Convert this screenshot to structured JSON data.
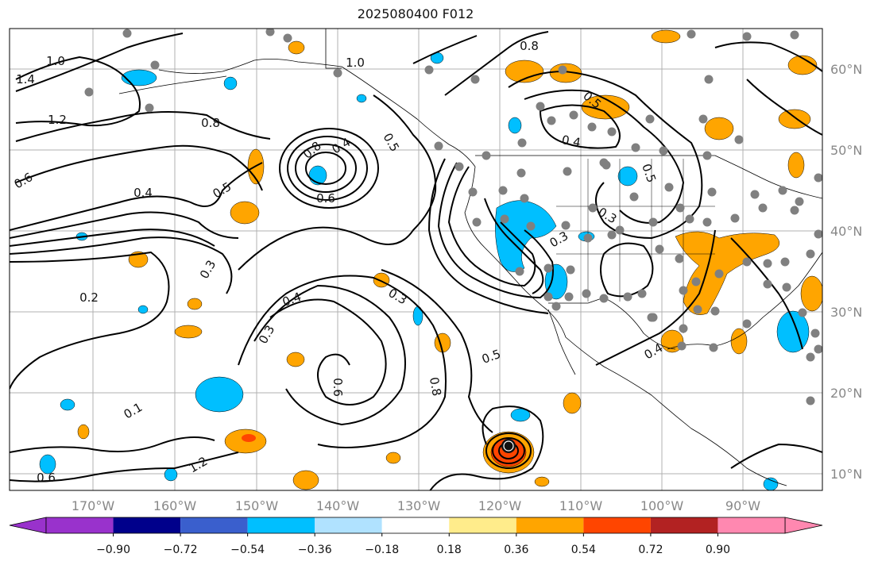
{
  "title": "2025080400 F012",
  "longitude_ticks": [
    "170°W",
    "160°W",
    "150°W",
    "140°W",
    "130°W",
    "120°W",
    "110°W",
    "100°W",
    "90°W"
  ],
  "latitude_ticks": [
    "60°N",
    "50°N",
    "40°N",
    "30°N",
    "20°N",
    "10°N"
  ],
  "colorbar": {
    "colors": [
      "#9932cc",
      "#00008b",
      "#3a5fcd",
      "#00bfff",
      "#b0e2ff",
      "#ffffff",
      "#ffec8b",
      "#ffa500",
      "#ff4500",
      "#b22222",
      "#ff88b0"
    ],
    "ticks": [
      "−0.90",
      "−0.72",
      "−0.54",
      "−0.36",
      "−0.18",
      "0.18",
      "0.36",
      "0.54",
      "0.72",
      "0.90"
    ]
  },
  "palette": {
    "positive_light": "#ffa500",
    "positive_strong": "#ff4500",
    "negative_light": "#00bfff",
    "negative_pale": "#b0e2ff",
    "dot_marker": "#808080",
    "contour": "#000000",
    "coastline": "#000000",
    "grid": "#b0b0b0"
  },
  "contour_labels": [
    "1.0",
    "1.4",
    "1.2",
    "0.8",
    "0.6",
    "0.4",
    "0.5",
    "0.3",
    "0.2",
    "0.1",
    "0.6",
    "1.2",
    "1.0",
    "0.8",
    "0.4",
    "0.6",
    "0.5",
    "0.3",
    "0.6",
    "0.4",
    "0.3",
    "0.8",
    "0.5",
    "0.4",
    "0.8",
    "0.5",
    "0.3",
    "0.3",
    "0.4",
    "0.5"
  ],
  "cyclone_marker": "center-marker"
}
